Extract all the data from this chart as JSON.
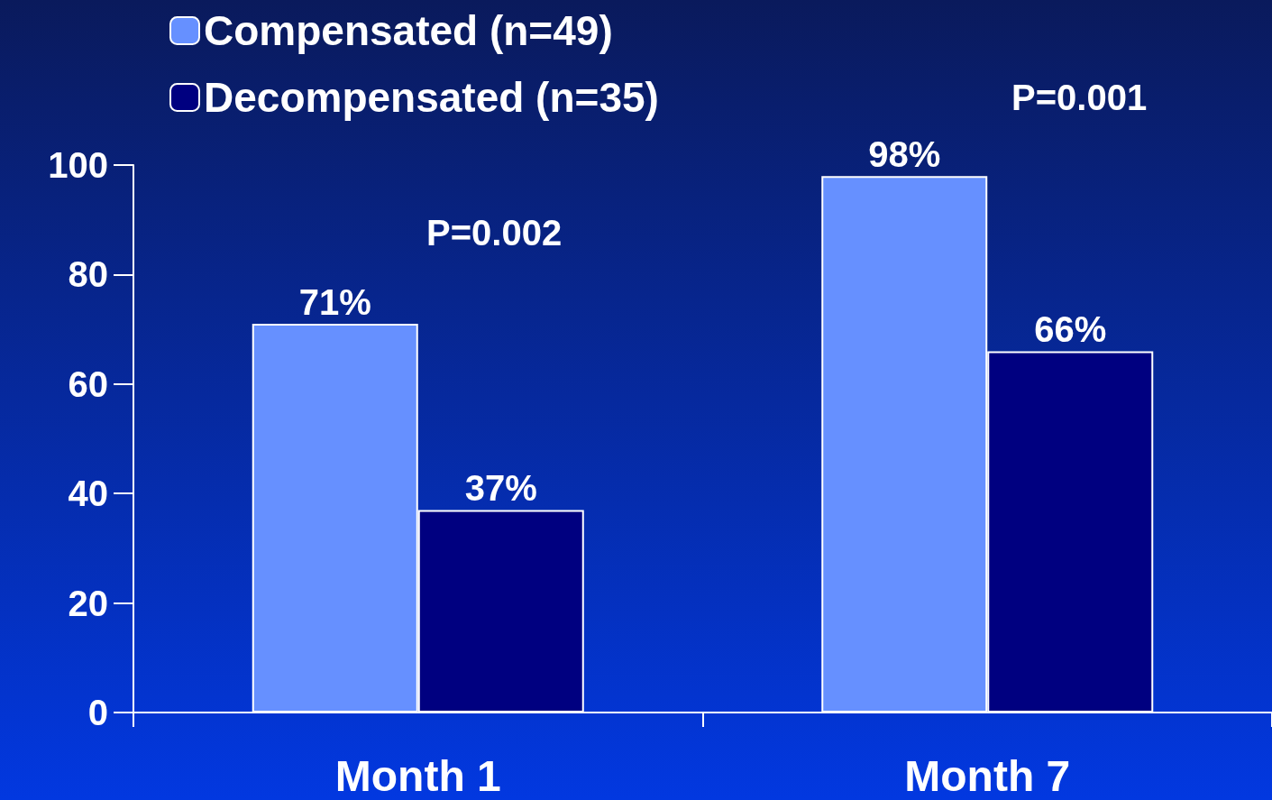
{
  "chart_data": {
    "type": "bar",
    "categories": [
      "Month 1",
      "Month 7"
    ],
    "series": [
      {
        "name": "Compensated (n=49)",
        "color": "#6690ff",
        "values": [
          71,
          98
        ],
        "value_labels": [
          "71%",
          "98%"
        ]
      },
      {
        "name": "Decompensated (n=35)",
        "color": "#000080",
        "values": [
          37,
          66
        ],
        "value_labels": [
          "37%",
          "66%"
        ]
      }
    ],
    "ylim": [
      0,
      100
    ],
    "yticks": [
      0,
      20,
      40,
      60,
      80,
      100
    ],
    "annotations": [
      "P=0.002",
      "P=0.001"
    ],
    "legend": "top left",
    "grid": false
  }
}
